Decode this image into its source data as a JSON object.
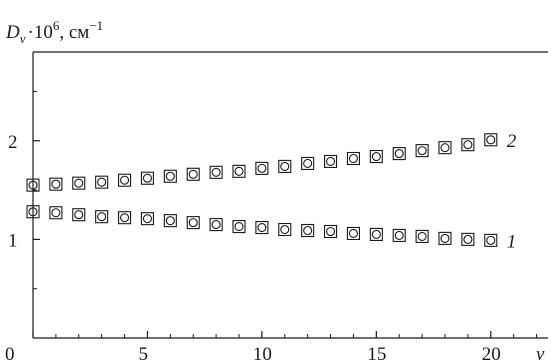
{
  "chart_data": {
    "type": "scatter",
    "ylabel": {
      "var": "D",
      "sub": "v",
      "mult": "·10",
      "exp": "6",
      "unit": ", см",
      "unit_exp": "−1"
    },
    "xlabel": "v",
    "xlim": [
      0,
      22.5
    ],
    "ylim": [
      0,
      2.9
    ],
    "x_ticks": [
      0,
      5,
      10,
      15,
      20
    ],
    "y_ticks": [
      1,
      2
    ],
    "y_tick_labels": [
      "1",
      "2"
    ],
    "x_tick_labels": [
      "0",
      "5",
      "10",
      "15",
      "20"
    ],
    "series": [
      {
        "name": "1",
        "x": [
          0,
          1,
          2,
          3,
          4,
          5,
          6,
          7,
          8,
          9,
          10,
          11,
          12,
          13,
          14,
          15,
          16,
          17,
          18,
          19,
          20
        ],
        "y": [
          1.28,
          1.27,
          1.25,
          1.23,
          1.22,
          1.21,
          1.19,
          1.17,
          1.15,
          1.13,
          1.12,
          1.1,
          1.09,
          1.08,
          1.06,
          1.05,
          1.04,
          1.03,
          1.01,
          1.0,
          0.99
        ]
      },
      {
        "name": "2",
        "x": [
          0,
          1,
          2,
          3,
          4,
          5,
          6,
          7,
          8,
          9,
          10,
          11,
          12,
          13,
          14,
          15,
          16,
          17,
          18,
          19,
          20
        ],
        "y": [
          1.55,
          1.56,
          1.57,
          1.58,
          1.6,
          1.62,
          1.64,
          1.66,
          1.68,
          1.69,
          1.72,
          1.74,
          1.77,
          1.79,
          1.82,
          1.84,
          1.87,
          1.9,
          1.93,
          1.96,
          2.01
        ]
      }
    ]
  }
}
